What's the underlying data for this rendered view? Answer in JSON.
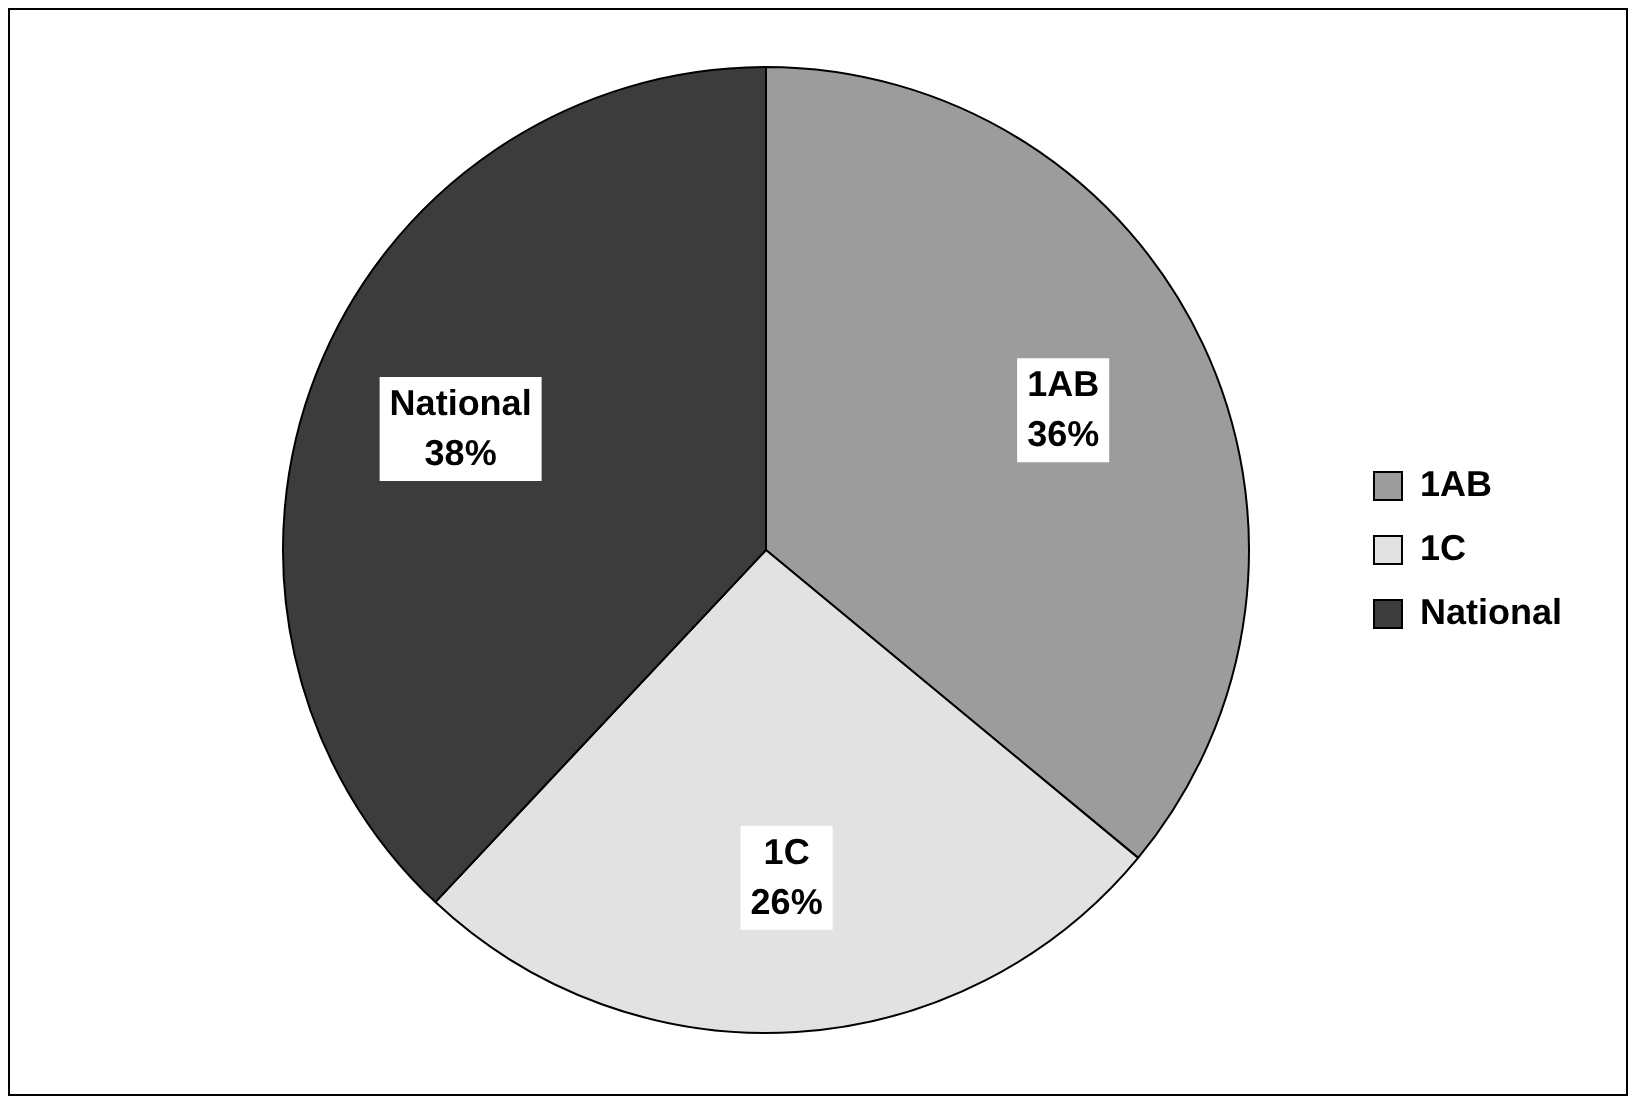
{
  "chart_data": {
    "type": "pie",
    "categories": [
      "1AB",
      "1C",
      "National"
    ],
    "values": [
      36,
      26,
      38
    ],
    "colors": [
      "#9c9c9c",
      "#e2e2e2",
      "#3c3c3c"
    ],
    "value_labels": [
      "36%",
      "26%",
      "38%"
    ],
    "legend": "right"
  }
}
